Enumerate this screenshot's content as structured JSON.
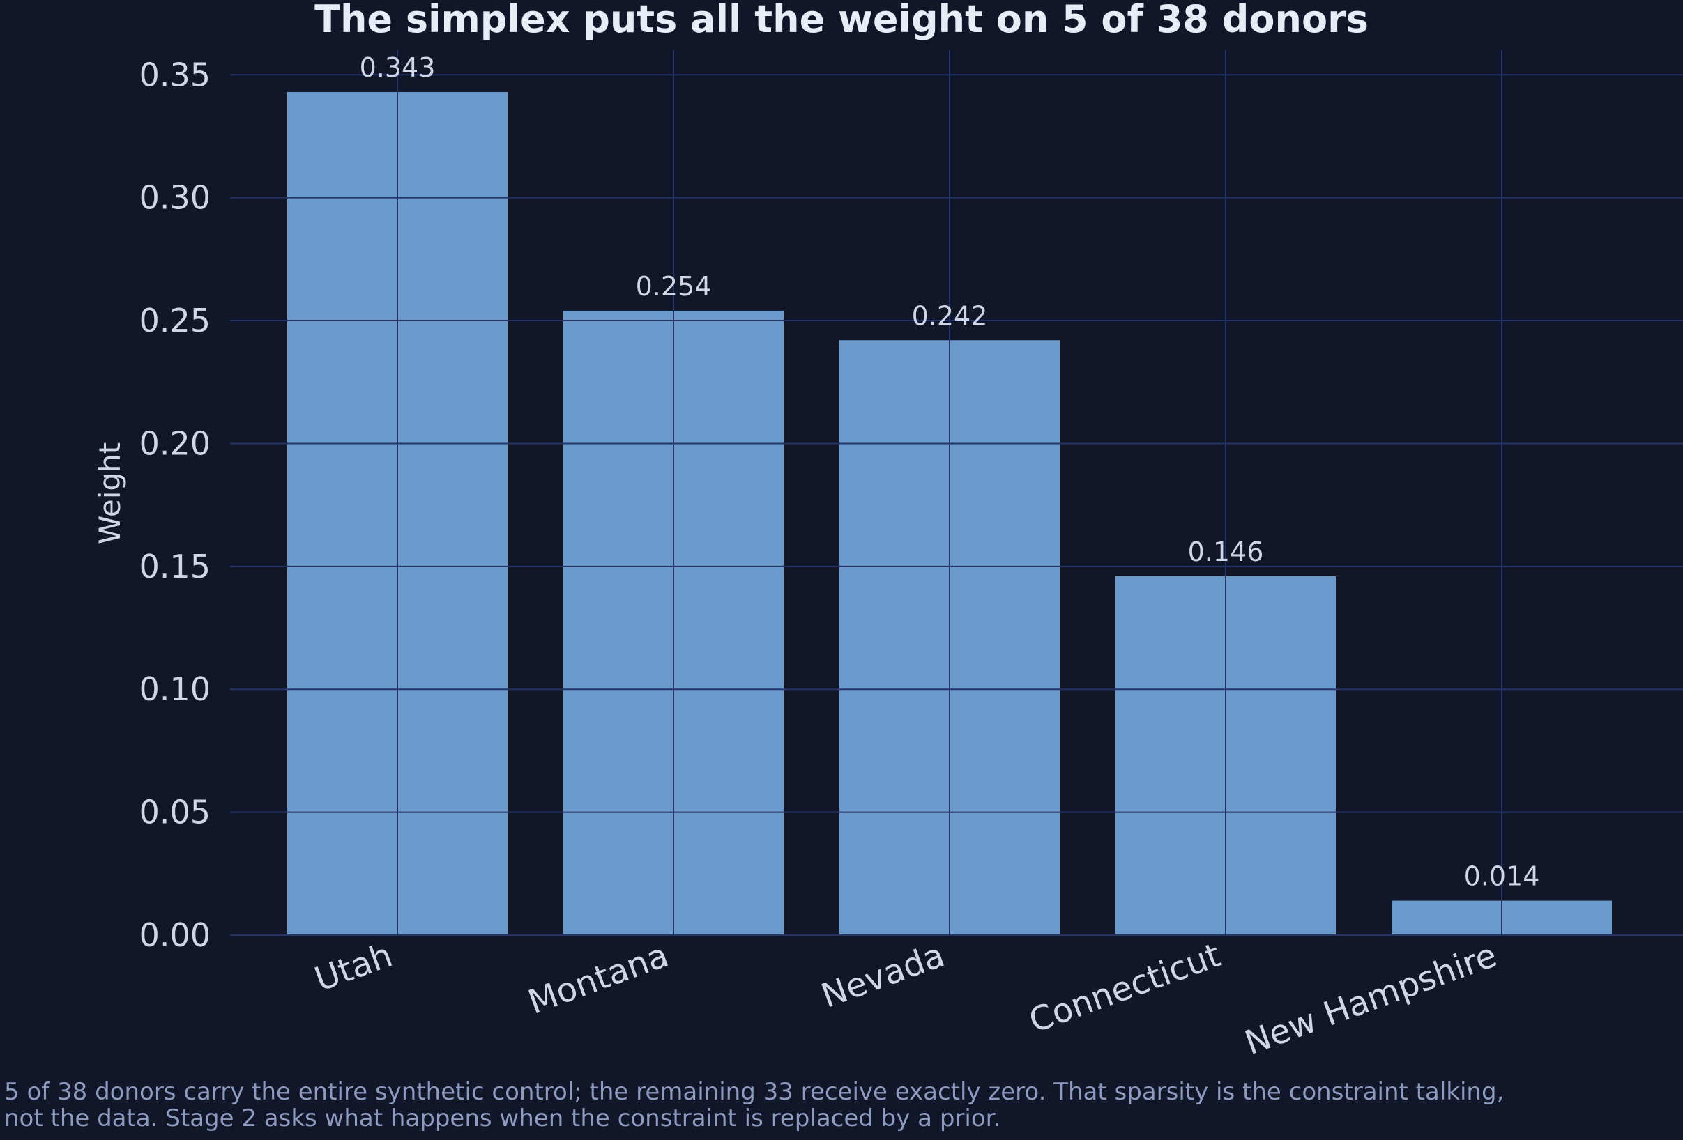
{
  "chart_data": {
    "type": "bar",
    "title": "The simplex puts all the weight on 5 of 38 donors",
    "xlabel": "",
    "ylabel": "Weight",
    "categories": [
      "Utah",
      "Montana",
      "Nevada",
      "Connecticut",
      "New Hampshire"
    ],
    "values": [
      0.343,
      0.254,
      0.242,
      0.146,
      0.014
    ],
    "value_labels": [
      "0.343",
      "0.254",
      "0.242",
      "0.146",
      "0.014"
    ],
    "ylim": [
      0,
      0.36
    ],
    "yticks": [
      0.0,
      0.05,
      0.1,
      0.15,
      0.2,
      0.25,
      0.3,
      0.35
    ],
    "ytick_labels": [
      "0.00",
      "0.05",
      "0.10",
      "0.15",
      "0.20",
      "0.25",
      "0.30",
      "0.35"
    ],
    "grid": true,
    "colors": {
      "background": "#111729",
      "bar": "#6b9bcd",
      "grid": "#243466",
      "text": "#cfd6e8",
      "title": "#e8ecf6",
      "caption": "#8d9bc0"
    }
  },
  "caption": {
    "line1": "5 of 38 donors carry the entire synthetic control; the remaining 33 receive exactly zero. That sparsity is the constraint talking,",
    "line2": "not the data. Stage 2 asks what happens when the constraint is replaced by a prior."
  }
}
